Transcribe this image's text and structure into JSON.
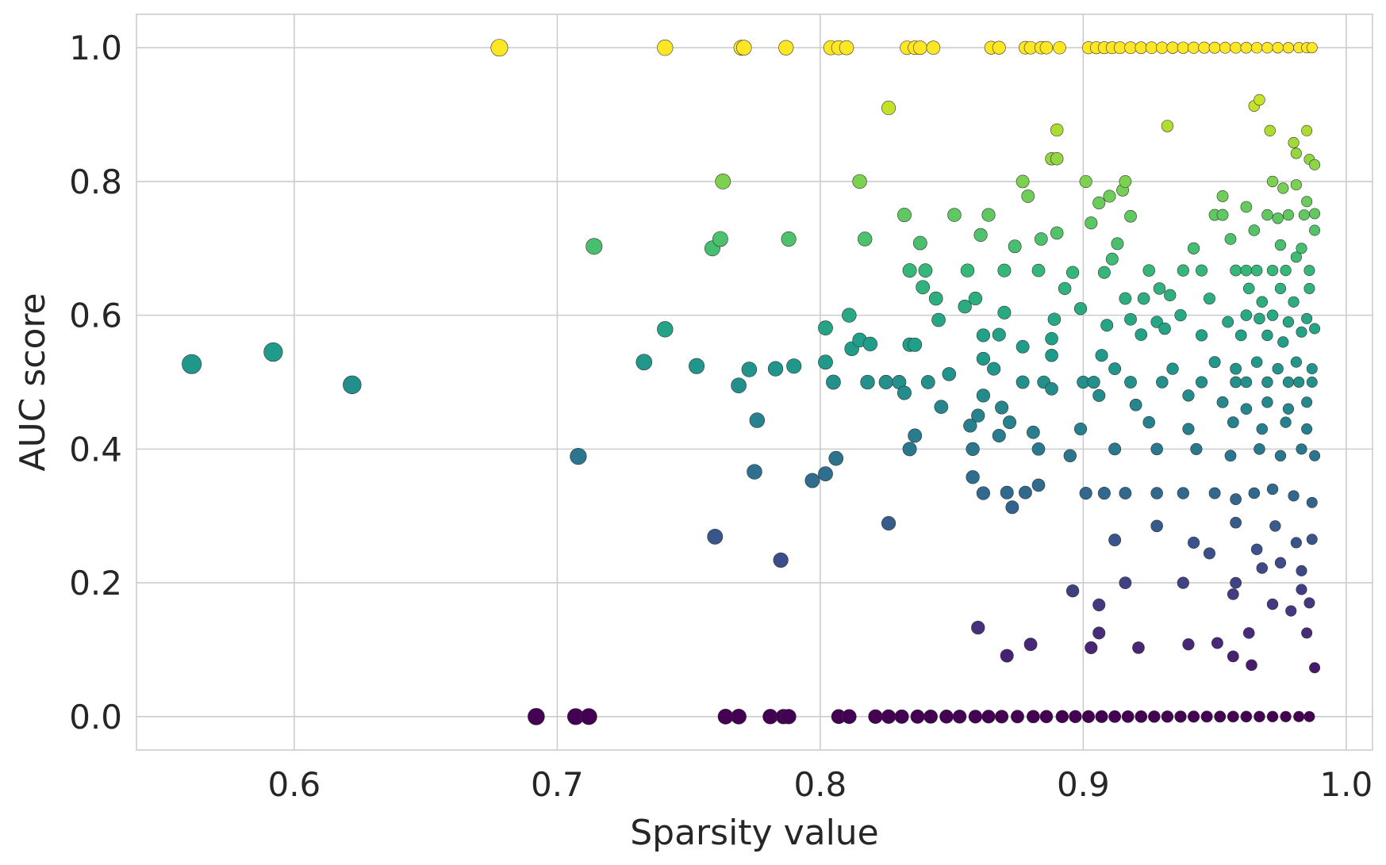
{
  "chart_data": {
    "type": "scatter",
    "title": "",
    "xlabel": "Sparsity value",
    "ylabel": "AUC score",
    "xlim": [
      0.54,
      1.01
    ],
    "ylim": [
      -0.05,
      1.05
    ],
    "xticks": [
      0.6,
      0.7,
      0.8,
      0.9,
      1.0
    ],
    "xtick_labels": [
      "0.6",
      "0.7",
      "0.8",
      "0.9",
      "1.0"
    ],
    "yticks": [
      0.0,
      0.2,
      0.4,
      0.6,
      0.8,
      1.0
    ],
    "ytick_labels": [
      "0.0",
      "0.2",
      "0.4",
      "0.6",
      "0.8",
      "1.0"
    ],
    "grid": true,
    "legend": "none",
    "colormap": "viridis",
    "color_encodes": "AUC score",
    "size_encodes": "inverse of sparsity value",
    "colors": [
      "#440154",
      "#482878",
      "#3e4989",
      "#31688e",
      "#26828e",
      "#1f9e89",
      "#35b779",
      "#6ece58",
      "#b5de2b",
      "#fde725"
    ],
    "points": [
      [
        0.678,
        1.0
      ],
      [
        0.741,
        1.0
      ],
      [
        0.77,
        1.0
      ],
      [
        0.771,
        1.0
      ],
      [
        0.787,
        1.0
      ],
      [
        0.804,
        1.0
      ],
      [
        0.807,
        1.0
      ],
      [
        0.81,
        1.0
      ],
      [
        0.833,
        1.0
      ],
      [
        0.836,
        1.0
      ],
      [
        0.838,
        1.0
      ],
      [
        0.843,
        1.0
      ],
      [
        0.865,
        1.0
      ],
      [
        0.868,
        1.0
      ],
      [
        0.878,
        1.0
      ],
      [
        0.88,
        1.0
      ],
      [
        0.884,
        1.0
      ],
      [
        0.886,
        1.0
      ],
      [
        0.891,
        1.0
      ],
      [
        0.902,
        1.0
      ],
      [
        0.905,
        1.0
      ],
      [
        0.908,
        1.0
      ],
      [
        0.911,
        1.0
      ],
      [
        0.914,
        1.0
      ],
      [
        0.918,
        1.0
      ],
      [
        0.922,
        1.0
      ],
      [
        0.926,
        1.0
      ],
      [
        0.93,
        1.0
      ],
      [
        0.934,
        1.0
      ],
      [
        0.938,
        1.0
      ],
      [
        0.942,
        1.0
      ],
      [
        0.946,
        1.0
      ],
      [
        0.95,
        1.0
      ],
      [
        0.954,
        1.0
      ],
      [
        0.958,
        1.0
      ],
      [
        0.962,
        1.0
      ],
      [
        0.966,
        1.0
      ],
      [
        0.97,
        1.0
      ],
      [
        0.974,
        1.0
      ],
      [
        0.978,
        1.0
      ],
      [
        0.982,
        1.0
      ],
      [
        0.985,
        1.0
      ],
      [
        0.987,
        1.0
      ],
      [
        0.826,
        0.91
      ],
      [
        0.89,
        0.877
      ],
      [
        0.932,
        0.883
      ],
      [
        0.967,
        0.922
      ],
      [
        0.965,
        0.913
      ],
      [
        0.971,
        0.876
      ],
      [
        0.98,
        0.858
      ],
      [
        0.985,
        0.876
      ],
      [
        0.981,
        0.842
      ],
      [
        0.986,
        0.833
      ],
      [
        0.988,
        0.825
      ],
      [
        0.888,
        0.834
      ],
      [
        0.89,
        0.834
      ],
      [
        0.763,
        0.8
      ],
      [
        0.815,
        0.8
      ],
      [
        0.877,
        0.8
      ],
      [
        0.901,
        0.8
      ],
      [
        0.916,
        0.8
      ],
      [
        0.972,
        0.8
      ],
      [
        0.981,
        0.795
      ],
      [
        0.879,
        0.778
      ],
      [
        0.91,
        0.778
      ],
      [
        0.915,
        0.787
      ],
      [
        0.953,
        0.778
      ],
      [
        0.976,
        0.79
      ],
      [
        0.985,
        0.77
      ],
      [
        0.832,
        0.75
      ],
      [
        0.851,
        0.75
      ],
      [
        0.864,
        0.75
      ],
      [
        0.906,
        0.768
      ],
      [
        0.918,
        0.748
      ],
      [
        0.95,
        0.75
      ],
      [
        0.953,
        0.75
      ],
      [
        0.962,
        0.762
      ],
      [
        0.97,
        0.75
      ],
      [
        0.974,
        0.745
      ],
      [
        0.978,
        0.75
      ],
      [
        0.984,
        0.75
      ],
      [
        0.988,
        0.752
      ],
      [
        0.714,
        0.703
      ],
      [
        0.759,
        0.7
      ],
      [
        0.762,
        0.714
      ],
      [
        0.788,
        0.714
      ],
      [
        0.817,
        0.714
      ],
      [
        0.838,
        0.708
      ],
      [
        0.861,
        0.72
      ],
      [
        0.874,
        0.703
      ],
      [
        0.884,
        0.714
      ],
      [
        0.89,
        0.723
      ],
      [
        0.903,
        0.738
      ],
      [
        0.913,
        0.707
      ],
      [
        0.942,
        0.7
      ],
      [
        0.956,
        0.714
      ],
      [
        0.965,
        0.727
      ],
      [
        0.975,
        0.705
      ],
      [
        0.983,
        0.7
      ],
      [
        0.988,
        0.727
      ],
      [
        0.834,
        0.667
      ],
      [
        0.84,
        0.667
      ],
      [
        0.856,
        0.667
      ],
      [
        0.87,
        0.667
      ],
      [
        0.883,
        0.667
      ],
      [
        0.896,
        0.664
      ],
      [
        0.908,
        0.664
      ],
      [
        0.911,
        0.684
      ],
      [
        0.925,
        0.667
      ],
      [
        0.938,
        0.667
      ],
      [
        0.945,
        0.667
      ],
      [
        0.958,
        0.667
      ],
      [
        0.962,
        0.667
      ],
      [
        0.966,
        0.667
      ],
      [
        0.972,
        0.667
      ],
      [
        0.977,
        0.667
      ],
      [
        0.981,
        0.687
      ],
      [
        0.986,
        0.667
      ],
      [
        0.839,
        0.642
      ],
      [
        0.844,
        0.625
      ],
      [
        0.855,
        0.613
      ],
      [
        0.859,
        0.625
      ],
      [
        0.893,
        0.64
      ],
      [
        0.916,
        0.625
      ],
      [
        0.923,
        0.625
      ],
      [
        0.929,
        0.64
      ],
      [
        0.933,
        0.63
      ],
      [
        0.948,
        0.625
      ],
      [
        0.963,
        0.64
      ],
      [
        0.968,
        0.62
      ],
      [
        0.975,
        0.64
      ],
      [
        0.98,
        0.62
      ],
      [
        0.986,
        0.64
      ],
      [
        0.811,
        0.6
      ],
      [
        0.845,
        0.593
      ],
      [
        0.87,
        0.604
      ],
      [
        0.889,
        0.594
      ],
      [
        0.899,
        0.61
      ],
      [
        0.918,
        0.594
      ],
      [
        0.928,
        0.59
      ],
      [
        0.937,
        0.6
      ],
      [
        0.955,
        0.59
      ],
      [
        0.962,
        0.6
      ],
      [
        0.967,
        0.595
      ],
      [
        0.972,
        0.6
      ],
      [
        0.978,
        0.59
      ],
      [
        0.985,
        0.595
      ],
      [
        0.741,
        0.579
      ],
      [
        0.802,
        0.581
      ],
      [
        0.815,
        0.563
      ],
      [
        0.819,
        0.557
      ],
      [
        0.834,
        0.556
      ],
      [
        0.836,
        0.556
      ],
      [
        0.862,
        0.57
      ],
      [
        0.868,
        0.571
      ],
      [
        0.877,
        0.553
      ],
      [
        0.888,
        0.565
      ],
      [
        0.909,
        0.585
      ],
      [
        0.922,
        0.571
      ],
      [
        0.931,
        0.58
      ],
      [
        0.945,
        0.57
      ],
      [
        0.96,
        0.57
      ],
      [
        0.97,
        0.57
      ],
      [
        0.976,
        0.56
      ],
      [
        0.983,
        0.575
      ],
      [
        0.988,
        0.58
      ],
      [
        0.561,
        0.527
      ],
      [
        0.592,
        0.545
      ],
      [
        0.733,
        0.53
      ],
      [
        0.753,
        0.524
      ],
      [
        0.773,
        0.519
      ],
      [
        0.783,
        0.52
      ],
      [
        0.79,
        0.524
      ],
      [
        0.802,
        0.53
      ],
      [
        0.812,
        0.55
      ],
      [
        0.849,
        0.512
      ],
      [
        0.862,
        0.535
      ],
      [
        0.866,
        0.52
      ],
      [
        0.888,
        0.54
      ],
      [
        0.907,
        0.54
      ],
      [
        0.912,
        0.52
      ],
      [
        0.934,
        0.52
      ],
      [
        0.95,
        0.53
      ],
      [
        0.958,
        0.52
      ],
      [
        0.966,
        0.53
      ],
      [
        0.974,
        0.52
      ],
      [
        0.981,
        0.53
      ],
      [
        0.987,
        0.52
      ],
      [
        0.622,
        0.496
      ],
      [
        0.769,
        0.495
      ],
      [
        0.805,
        0.5
      ],
      [
        0.818,
        0.5
      ],
      [
        0.825,
        0.5
      ],
      [
        0.83,
        0.5
      ],
      [
        0.841,
        0.5
      ],
      [
        0.877,
        0.5
      ],
      [
        0.885,
        0.5
      ],
      [
        0.9,
        0.5
      ],
      [
        0.904,
        0.5
      ],
      [
        0.918,
        0.5
      ],
      [
        0.93,
        0.5
      ],
      [
        0.945,
        0.5
      ],
      [
        0.958,
        0.5
      ],
      [
        0.962,
        0.5
      ],
      [
        0.97,
        0.5
      ],
      [
        0.978,
        0.5
      ],
      [
        0.982,
        0.5
      ],
      [
        0.987,
        0.5
      ],
      [
        0.832,
        0.484
      ],
      [
        0.846,
        0.463
      ],
      [
        0.862,
        0.48
      ],
      [
        0.869,
        0.462
      ],
      [
        0.888,
        0.49
      ],
      [
        0.906,
        0.48
      ],
      [
        0.92,
        0.466
      ],
      [
        0.94,
        0.48
      ],
      [
        0.953,
        0.47
      ],
      [
        0.962,
        0.46
      ],
      [
        0.97,
        0.47
      ],
      [
        0.978,
        0.46
      ],
      [
        0.985,
        0.47
      ],
      [
        0.776,
        0.443
      ],
      [
        0.857,
        0.435
      ],
      [
        0.86,
        0.45
      ],
      [
        0.872,
        0.44
      ],
      [
        0.881,
        0.425
      ],
      [
        0.899,
        0.43
      ],
      [
        0.925,
        0.44
      ],
      [
        0.94,
        0.43
      ],
      [
        0.957,
        0.44
      ],
      [
        0.968,
        0.43
      ],
      [
        0.977,
        0.44
      ],
      [
        0.985,
        0.43
      ],
      [
        0.708,
        0.389
      ],
      [
        0.797,
        0.353
      ],
      [
        0.802,
        0.363
      ],
      [
        0.806,
        0.386
      ],
      [
        0.834,
        0.4
      ],
      [
        0.836,
        0.42
      ],
      [
        0.858,
        0.4
      ],
      [
        0.868,
        0.42
      ],
      [
        0.883,
        0.4
      ],
      [
        0.895,
        0.39
      ],
      [
        0.912,
        0.4
      ],
      [
        0.928,
        0.4
      ],
      [
        0.943,
        0.4
      ],
      [
        0.956,
        0.39
      ],
      [
        0.967,
        0.4
      ],
      [
        0.975,
        0.39
      ],
      [
        0.983,
        0.4
      ],
      [
        0.988,
        0.39
      ],
      [
        0.775,
        0.366
      ],
      [
        0.858,
        0.358
      ],
      [
        0.862,
        0.334
      ],
      [
        0.871,
        0.335
      ],
      [
        0.873,
        0.313
      ],
      [
        0.878,
        0.335
      ],
      [
        0.883,
        0.346
      ],
      [
        0.901,
        0.334
      ],
      [
        0.908,
        0.334
      ],
      [
        0.916,
        0.334
      ],
      [
        0.928,
        0.334
      ],
      [
        0.938,
        0.334
      ],
      [
        0.95,
        0.334
      ],
      [
        0.958,
        0.325
      ],
      [
        0.965,
        0.334
      ],
      [
        0.972,
        0.34
      ],
      [
        0.98,
        0.33
      ],
      [
        0.987,
        0.32
      ],
      [
        0.76,
        0.269
      ],
      [
        0.826,
        0.289
      ],
      [
        0.912,
        0.264
      ],
      [
        0.928,
        0.285
      ],
      [
        0.942,
        0.26
      ],
      [
        0.958,
        0.29
      ],
      [
        0.966,
        0.25
      ],
      [
        0.973,
        0.285
      ],
      [
        0.981,
        0.26
      ],
      [
        0.987,
        0.265
      ],
      [
        0.785,
        0.234
      ],
      [
        0.948,
        0.244
      ],
      [
        0.968,
        0.222
      ],
      [
        0.975,
        0.23
      ],
      [
        0.983,
        0.218
      ],
      [
        0.896,
        0.188
      ],
      [
        0.916,
        0.2
      ],
      [
        0.938,
        0.2
      ],
      [
        0.957,
        0.183
      ],
      [
        0.958,
        0.2
      ],
      [
        0.972,
        0.168
      ],
      [
        0.979,
        0.158
      ],
      [
        0.983,
        0.19
      ],
      [
        0.986,
        0.17
      ],
      [
        0.86,
        0.133
      ],
      [
        0.88,
        0.108
      ],
      [
        0.903,
        0.103
      ],
      [
        0.906,
        0.125
      ],
      [
        0.906,
        0.167
      ],
      [
        0.921,
        0.103
      ],
      [
        0.94,
        0.108
      ],
      [
        0.951,
        0.11
      ],
      [
        0.957,
        0.09
      ],
      [
        0.963,
        0.125
      ],
      [
        0.964,
        0.077
      ],
      [
        0.985,
        0.125
      ],
      [
        0.988,
        0.073
      ],
      [
        0.871,
        0.091
      ],
      [
        0.692,
        0.0
      ],
      [
        0.707,
        0.0
      ],
      [
        0.712,
        0.0
      ],
      [
        0.764,
        0.0
      ],
      [
        0.769,
        0.0
      ],
      [
        0.781,
        0.0
      ],
      [
        0.786,
        0.0
      ],
      [
        0.788,
        0.0
      ],
      [
        0.807,
        0.0
      ],
      [
        0.811,
        0.0
      ],
      [
        0.821,
        0.0
      ],
      [
        0.826,
        0.0
      ],
      [
        0.831,
        0.0
      ],
      [
        0.837,
        0.0
      ],
      [
        0.842,
        0.0
      ],
      [
        0.848,
        0.0
      ],
      [
        0.853,
        0.0
      ],
      [
        0.859,
        0.0
      ],
      [
        0.864,
        0.0
      ],
      [
        0.869,
        0.0
      ],
      [
        0.875,
        0.0
      ],
      [
        0.881,
        0.0
      ],
      [
        0.886,
        0.0
      ],
      [
        0.892,
        0.0
      ],
      [
        0.897,
        0.0
      ],
      [
        0.902,
        0.0
      ],
      [
        0.907,
        0.0
      ],
      [
        0.912,
        0.0
      ],
      [
        0.917,
        0.0
      ],
      [
        0.922,
        0.0
      ],
      [
        0.927,
        0.0
      ],
      [
        0.932,
        0.0
      ],
      [
        0.937,
        0.0
      ],
      [
        0.942,
        0.0
      ],
      [
        0.947,
        0.0
      ],
      [
        0.952,
        0.0
      ],
      [
        0.957,
        0.0
      ],
      [
        0.962,
        0.0
      ],
      [
        0.967,
        0.0
      ],
      [
        0.972,
        0.0
      ],
      [
        0.977,
        0.0
      ],
      [
        0.982,
        0.0
      ],
      [
        0.986,
        0.0
      ]
    ]
  }
}
